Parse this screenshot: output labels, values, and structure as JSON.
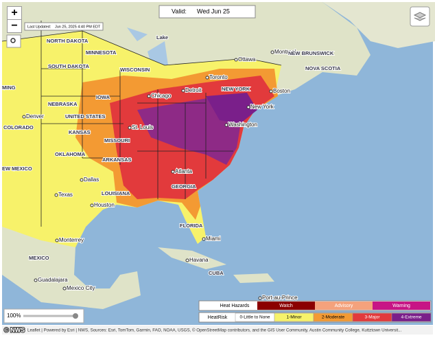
{
  "controls": {
    "zoom_in": "+",
    "zoom_out": "−"
  },
  "valid": {
    "label": "Valid:",
    "date": "Wed Jun 25"
  },
  "last_updated": {
    "label": "Last Updated:",
    "time": "Jun 25, 2025 4:40 PM EDT"
  },
  "map_labels": [
    "NORTH DAKOTA",
    "SOUTH DAKOTA",
    "MINNESOTA",
    "WISCONSIN",
    "IOWA",
    "NEBRASKA",
    "UNITED STATES",
    "KANSAS",
    "COLORADO",
    "Denver",
    "MING",
    "EW MEXICO",
    "OKLAHOMA",
    "Dallas",
    "Texas",
    "Houston",
    "LOUISIANA",
    "ARKANSAS",
    "MISSOURI",
    "St. Louis",
    "Chicago",
    "Detroit",
    "Toronto",
    "Ottawa",
    "Montreal",
    "NEW YORK",
    "New York",
    "Boston",
    "Washington",
    "Atlanta",
    "GEORGIA",
    "FLORIDA",
    "Miami",
    "Havana",
    "CUBA",
    "Monterrey",
    "MEXICO",
    "Guadalajara",
    "Mexico City",
    "Port-au-Prince",
    "NEW BRUNSWICK",
    "NOVA SCOTIA",
    "Lake"
  ],
  "legend": {
    "hazards": {
      "title": "Heat Hazards",
      "items": [
        "Watch",
        "Advisory",
        "Warning"
      ]
    },
    "heatrisk": {
      "title": "HeatRisk",
      "items": [
        "0-Little to None",
        "1-Minor",
        "2-Moderate",
        "3-Major",
        "4-Extreme"
      ]
    }
  },
  "opacity": "100%",
  "attribution": "Leaflet | Powered by Esri | NWS, Sources: Esri, TomTom, Garmin, FAO, NOAA, USGS, © OpenStreetMap contributors, and the GIS User Community, Austin Community College, Kuttztown Universit...",
  "watermark": "© NWS"
}
